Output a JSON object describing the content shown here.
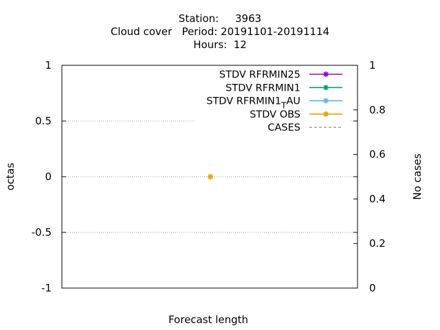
{
  "title": {
    "line1": "Station:     3963",
    "line2": "Cloud cover   Period: 20191101-20191114",
    "line3": "Hours:  12"
  },
  "chart_data": {
    "type": "scatter",
    "xlabel": "Forecast length",
    "ylabel": "octas",
    "y2label": "No cases",
    "ylim": [
      -1,
      1
    ],
    "y2lim": [
      0,
      1
    ],
    "yticks": [
      "1",
      "0.5",
      "0",
      "-0.5",
      "-1"
    ],
    "yticks_values": [
      1,
      0.5,
      0,
      -0.5,
      -1
    ],
    "y2ticks": [
      "1",
      "0.8",
      "0.6",
      "0.4",
      "0.2",
      "0"
    ],
    "y2ticks_values": [
      1,
      0.8,
      0.6,
      0.4,
      0.2,
      0
    ],
    "grid": true,
    "legend_position": "top-right",
    "series": [
      {
        "name": "STDV RFRMIN25",
        "color": "#9400d3",
        "style": "line-points",
        "values": []
      },
      {
        "name": "STDV RFRMIN1",
        "color": "#009e73",
        "style": "line-points",
        "values": []
      },
      {
        "name": "STDV RFRMIN1_TAU",
        "color": "#56b4e9",
        "style": "line-points",
        "values": []
      },
      {
        "name": "STDV OBS",
        "color": "#e69f00",
        "style": "line-points",
        "values": [
          {
            "x": null,
            "y": 0
          }
        ]
      },
      {
        "name": "CASES",
        "color": "#808080",
        "style": "dashed",
        "values": []
      }
    ]
  }
}
